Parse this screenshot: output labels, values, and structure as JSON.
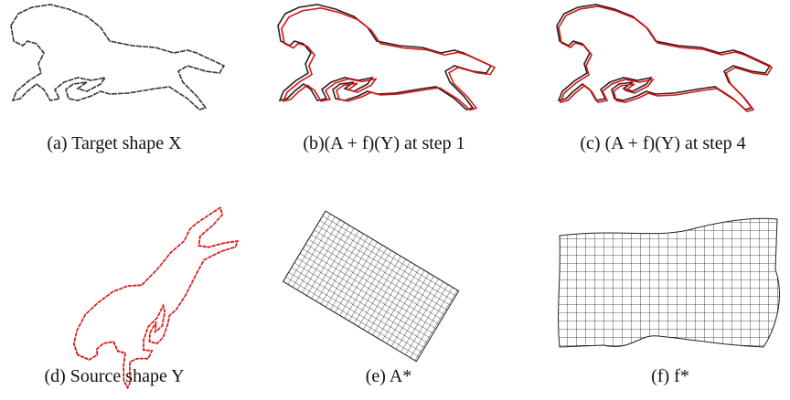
{
  "panels": [
    {
      "caption": "(a) Target shape X"
    },
    {
      "caption": "(b)(A + f)(Y) at step 1"
    },
    {
      "caption": "(c) (A + f)(Y) at step 4"
    },
    {
      "caption": "(d) Source shape Y"
    },
    {
      "caption": "(e) A*"
    },
    {
      "caption": "(f) f*"
    }
  ]
}
